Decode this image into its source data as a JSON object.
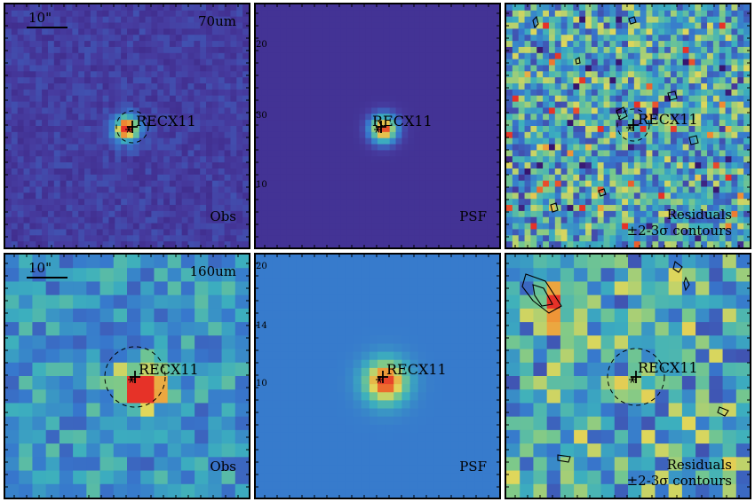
{
  "source_label": "RECX11",
  "scale_bar_label": "10\"",
  "contour_note": "±2-3σ contours",
  "rows": [
    {
      "band": "70um",
      "panels": [
        {
          "label": "Obs"
        },
        {
          "label": "PSF",
          "ticks": [
            "20",
            "30",
            "10"
          ]
        },
        {
          "label": "Residuals"
        }
      ]
    },
    {
      "band": "160um",
      "panels": [
        {
          "label": "Obs"
        },
        {
          "label": "PSF",
          "ticks": [
            "20",
            "14",
            "10"
          ]
        },
        {
          "label": "Residuals"
        }
      ]
    }
  ],
  "colors": {
    "deep_purple": "#3c1f7a",
    "blue": "#3f7fd0",
    "teal": "#3fb7a6",
    "yellow": "#e8d85a",
    "orange": "#f07a30",
    "red": "#e33a2a"
  }
}
